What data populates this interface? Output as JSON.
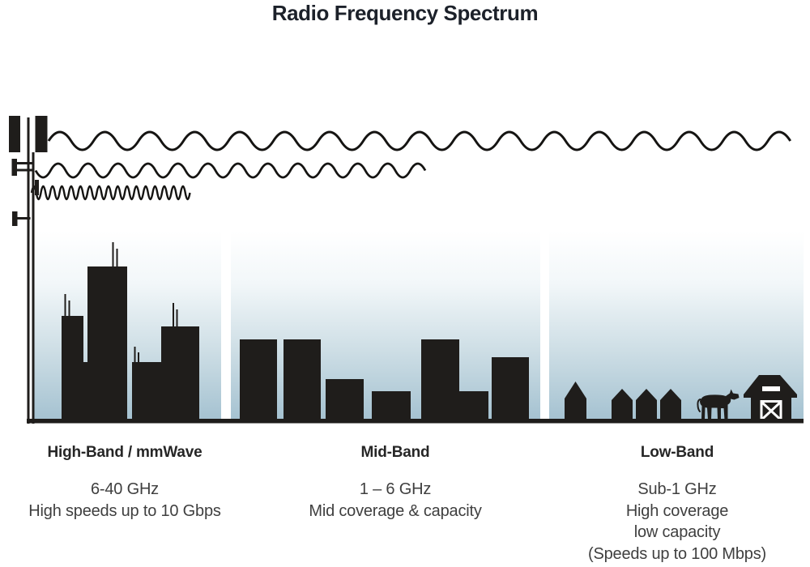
{
  "title": "Radio Frequency Spectrum",
  "colors": {
    "silhouette": "#1f1d1b",
    "sky_top": "#ffffff",
    "sky_bottom": "#a5c2d1",
    "heading_text": "#262626",
    "body_text": "#3f3f3f",
    "title_text": "#1c212a"
  },
  "bands": [
    {
      "id": "high-band",
      "title": "High-Band / mmWave",
      "frequency": "6-40 GHz",
      "description_lines": [
        "High speeds up to 10 Gbps"
      ],
      "scene_icons": [
        "cell-tower-icon",
        "short-wavelength-wave",
        "city-skyscrapers"
      ]
    },
    {
      "id": "mid-band",
      "title": "Mid-Band",
      "frequency": "1 – 6 GHz",
      "description_lines": [
        "Mid coverage & capacity"
      ],
      "scene_icons": [
        "medium-wavelength-wave",
        "midrise-buildings"
      ]
    },
    {
      "id": "low-band",
      "title": "Low-Band",
      "frequency": "Sub-1 GHz",
      "description_lines": [
        "High coverage",
        "low capacity",
        "(Speeds up to 100 Mbps)"
      ],
      "scene_icons": [
        "long-wavelength-wave",
        "houses",
        "cow-icon",
        "barn-icon"
      ]
    }
  ]
}
